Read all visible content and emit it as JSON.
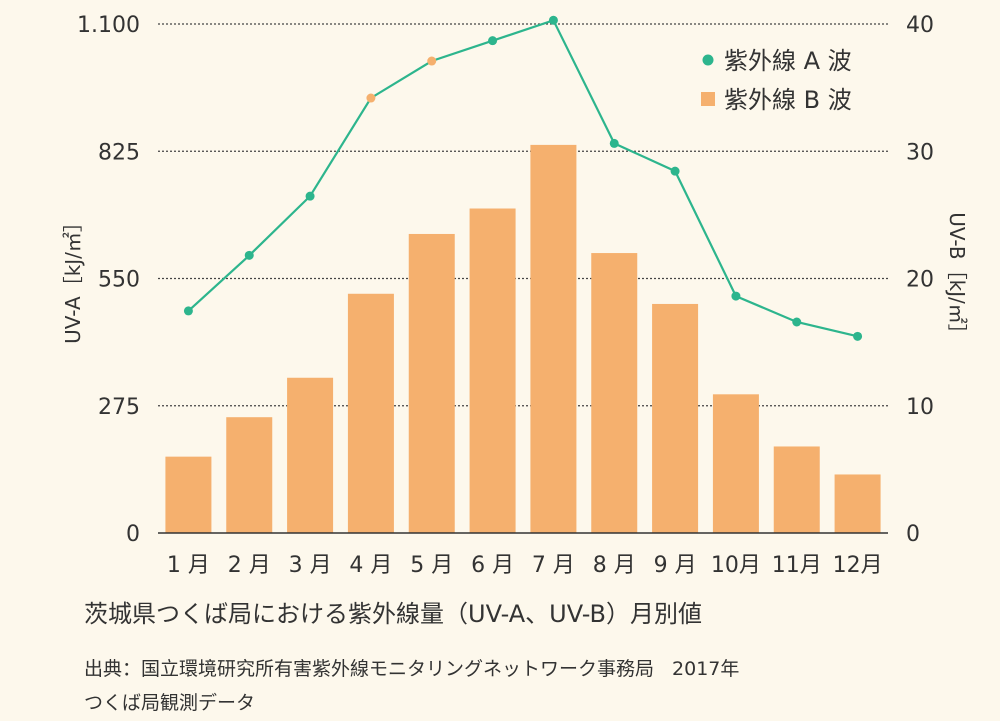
{
  "chart_data": {
    "type": "bar+line",
    "categories": [
      "1 月",
      "2 月",
      "3 月",
      "4 月",
      "5 月",
      "6 月",
      "7 月",
      "8 月",
      "9 月",
      "10月",
      "11月",
      "12月"
    ],
    "series": [
      {
        "name": "紫外線 A 波",
        "type": "line",
        "axis": "left",
        "color": "#2db58d",
        "values": [
          480,
          600,
          728,
          940,
          1020,
          1064,
          1108,
          842,
          782,
          512,
          456,
          425
        ]
      },
      {
        "name": "紫外線 B 波",
        "type": "bar",
        "axis": "right",
        "color": "#f5b06e",
        "values": [
          6.0,
          9.1,
          12.2,
          18.8,
          23.5,
          25.5,
          30.5,
          22.0,
          18.0,
          10.9,
          6.8,
          4.6
        ]
      }
    ],
    "highlighted_points": [
      3,
      4
    ],
    "highlight_color": "#f5b06e",
    "y_left": {
      "label": "UV-A［kJ/㎡］",
      "range": [
        0,
        1100
      ],
      "ticks": [
        0,
        275,
        550,
        825,
        1100
      ],
      "tick_labels": [
        "0",
        "275",
        "550",
        "825",
        "1.100"
      ]
    },
    "y_right": {
      "label": "UV-B［kJ/㎡］",
      "range": [
        0,
        40
      ],
      "ticks": [
        0,
        10,
        20,
        30,
        40
      ],
      "tick_labels": [
        "0",
        "10",
        "20",
        "30",
        "40"
      ]
    },
    "grid": "horizontal-dotted",
    "legend_position": "top-right"
  },
  "caption": "茨城県つくば局における紫外線量（UV-A、UV-B）月別値",
  "source": {
    "label": "出典：国立環境研究所有害紫外線モニタリングネットワーク事務局",
    "year": "2017年",
    "station": "つくば局観測データ"
  }
}
